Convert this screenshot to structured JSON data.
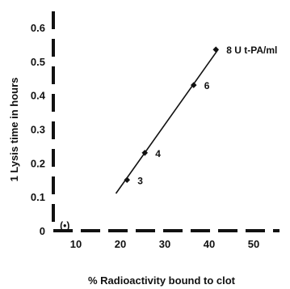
{
  "chart_data": {
    "type": "scatter",
    "xlabel": "% Radioactivity bound to clot",
    "ylabel": "1 Lysis time in hours",
    "xlim": [
      0,
      55
    ],
    "ylim": [
      0,
      0.65
    ],
    "x_ticks": [
      "10",
      "20",
      "30",
      "40",
      "50"
    ],
    "y_ticks": [
      "0",
      "0.1",
      "0.2",
      "0.3",
      "0.4",
      "0.5",
      "0.6"
    ],
    "points": [
      {
        "x": 7.5,
        "y": 0.015,
        "label": "(•)"
      },
      {
        "x": 21.5,
        "y": 0.15,
        "label": "3"
      },
      {
        "x": 25.5,
        "y": 0.23,
        "label": "4"
      },
      {
        "x": 36.5,
        "y": 0.43,
        "label": "6"
      },
      {
        "x": 41.5,
        "y": 0.535,
        "label": "8 U t-PA/ml"
      }
    ],
    "fit_line": {
      "x": [
        19,
        42
      ],
      "y": [
        0.11,
        0.535
      ]
    },
    "colors": {
      "ink": "#111111",
      "background": "#ffffff"
    }
  }
}
